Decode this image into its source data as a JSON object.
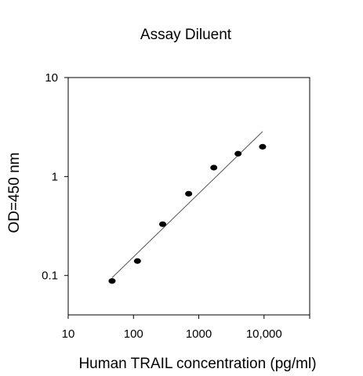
{
  "chart_data": {
    "type": "scatter",
    "title": "Assay Diluent",
    "xlabel": "Human TRAIL concentration (pg/ml)",
    "ylabel": "OD=450 nm",
    "x_scale": "log",
    "y_scale": "log",
    "xlim": [
      10,
      50000
    ],
    "ylim": [
      0.04,
      10
    ],
    "x_ticks": [
      {
        "value": 10,
        "label": "10"
      },
      {
        "value": 100,
        "label": "100"
      },
      {
        "value": 1000,
        "label": "1000"
      },
      {
        "value": 10000,
        "label": "10,000"
      }
    ],
    "y_ticks": [
      {
        "value": 0.1,
        "label": "0.1"
      },
      {
        "value": 1,
        "label": "1"
      },
      {
        "value": 10,
        "label": "10"
      }
    ],
    "grid": false,
    "legend": "none",
    "series": [
      {
        "points": [
          {
            "x": 47,
            "y": 0.088
          },
          {
            "x": 115,
            "y": 0.14
          },
          {
            "x": 280,
            "y": 0.33
          },
          {
            "x": 700,
            "y": 0.67
          },
          {
            "x": 1700,
            "y": 1.23
          },
          {
            "x": 4000,
            "y": 1.7
          },
          {
            "x": 9500,
            "y": 2.0
          }
        ],
        "color": "#000000"
      }
    ],
    "fit_line": {
      "points": [
        {
          "x": 47,
          "y": 0.095
        },
        {
          "x": 9500,
          "y": 2.85
        }
      ],
      "color": "#555555"
    }
  }
}
